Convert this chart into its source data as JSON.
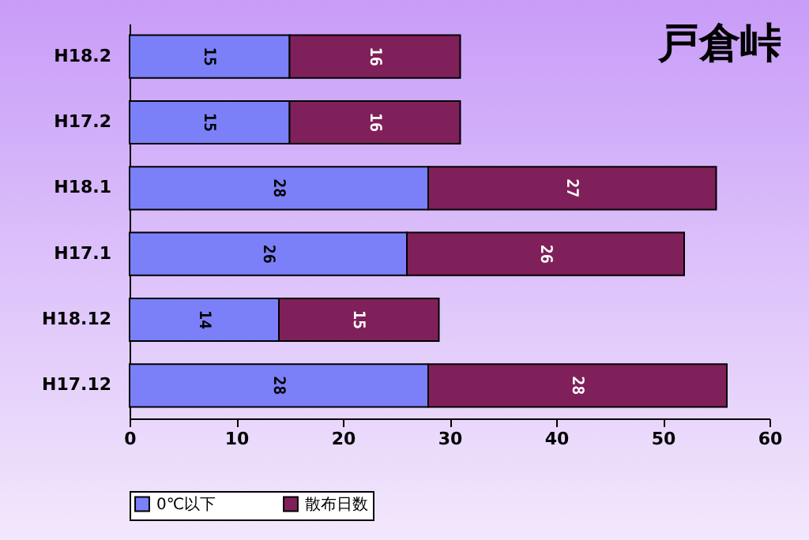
{
  "chart_data": {
    "type": "bar",
    "orientation": "horizontal",
    "stacked": true,
    "title": "戸倉峠",
    "categories": [
      "H18.2",
      "H17.2",
      "H18.1",
      "H17.1",
      "H18.12",
      "H17.12"
    ],
    "series": [
      {
        "name": "0℃以下",
        "color": "#7b80f8",
        "values": [
          15,
          15,
          28,
          26,
          14,
          28
        ]
      },
      {
        "name": "散布日数",
        "color": "#80205a",
        "values": [
          16,
          16,
          27,
          26,
          15,
          28
        ]
      }
    ],
    "xlim": [
      0,
      60
    ],
    "xticks": [
      0,
      10,
      20,
      30,
      40,
      50,
      60
    ],
    "data_labels": true,
    "legend": "bottom",
    "grid": false
  }
}
